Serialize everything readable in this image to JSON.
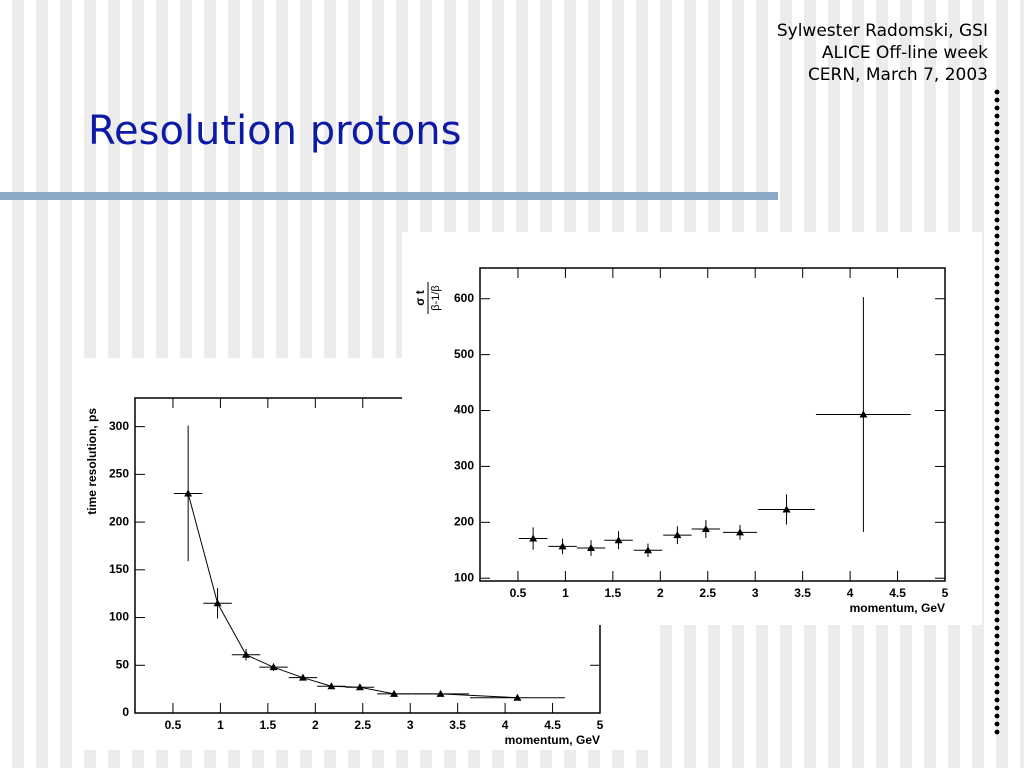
{
  "header": {
    "author_lines": [
      "Sylwester Radomski, GSI",
      "ALICE Off-line week",
      "CERN, March 7, 2003"
    ],
    "title": "Resolution protons"
  },
  "chart_data": [
    {
      "type": "scatter",
      "xlabel": "momentum, GeV",
      "ylabel": "time resolution, ps",
      "line": true,
      "color": "#000000",
      "xlim": [
        0.1,
        5
      ],
      "xticks": [
        0.5,
        1,
        1.5,
        2,
        2.5,
        3,
        3.5,
        4,
        4.5,
        5
      ],
      "ylim": [
        0,
        330
      ],
      "yticks": [
        0,
        50,
        100,
        150,
        200,
        250,
        300
      ],
      "x": [
        0.66,
        0.97,
        1.27,
        1.56,
        1.87,
        2.17,
        2.47,
        2.83,
        3.32,
        4.13
      ],
      "xerr": [
        0.15,
        0.15,
        0.15,
        0.15,
        0.15,
        0.15,
        0.15,
        0.18,
        0.3,
        0.5
      ],
      "values": [
        230,
        115,
        61,
        48,
        37,
        28,
        27,
        20,
        20,
        16
      ],
      "yerr": [
        71,
        16,
        6,
        4,
        3,
        2,
        2,
        2,
        2,
        2
      ]
    },
    {
      "type": "scatter",
      "xlabel": "momentum, GeV",
      "ylabel_numerator": "σ t",
      "ylabel_denominator": "β-1/β",
      "line": false,
      "color": "#000000",
      "xlim": [
        0.1,
        5
      ],
      "xticks": [
        0.5,
        1,
        1.5,
        2,
        2.5,
        3,
        3.5,
        4,
        4.5,
        5
      ],
      "ylim": [
        95,
        655
      ],
      "yticks": [
        100,
        200,
        300,
        400,
        500,
        600
      ],
      "x": [
        0.66,
        0.97,
        1.27,
        1.56,
        1.87,
        2.18,
        2.48,
        2.84,
        3.33,
        4.14
      ],
      "xerr": [
        0.15,
        0.15,
        0.15,
        0.15,
        0.15,
        0.15,
        0.15,
        0.18,
        0.3,
        0.5
      ],
      "values": [
        171,
        157,
        154,
        168,
        150,
        177,
        188,
        182,
        223,
        393
      ],
      "yerr": [
        20,
        14,
        14,
        16,
        12,
        16,
        16,
        13,
        27,
        210
      ]
    }
  ]
}
